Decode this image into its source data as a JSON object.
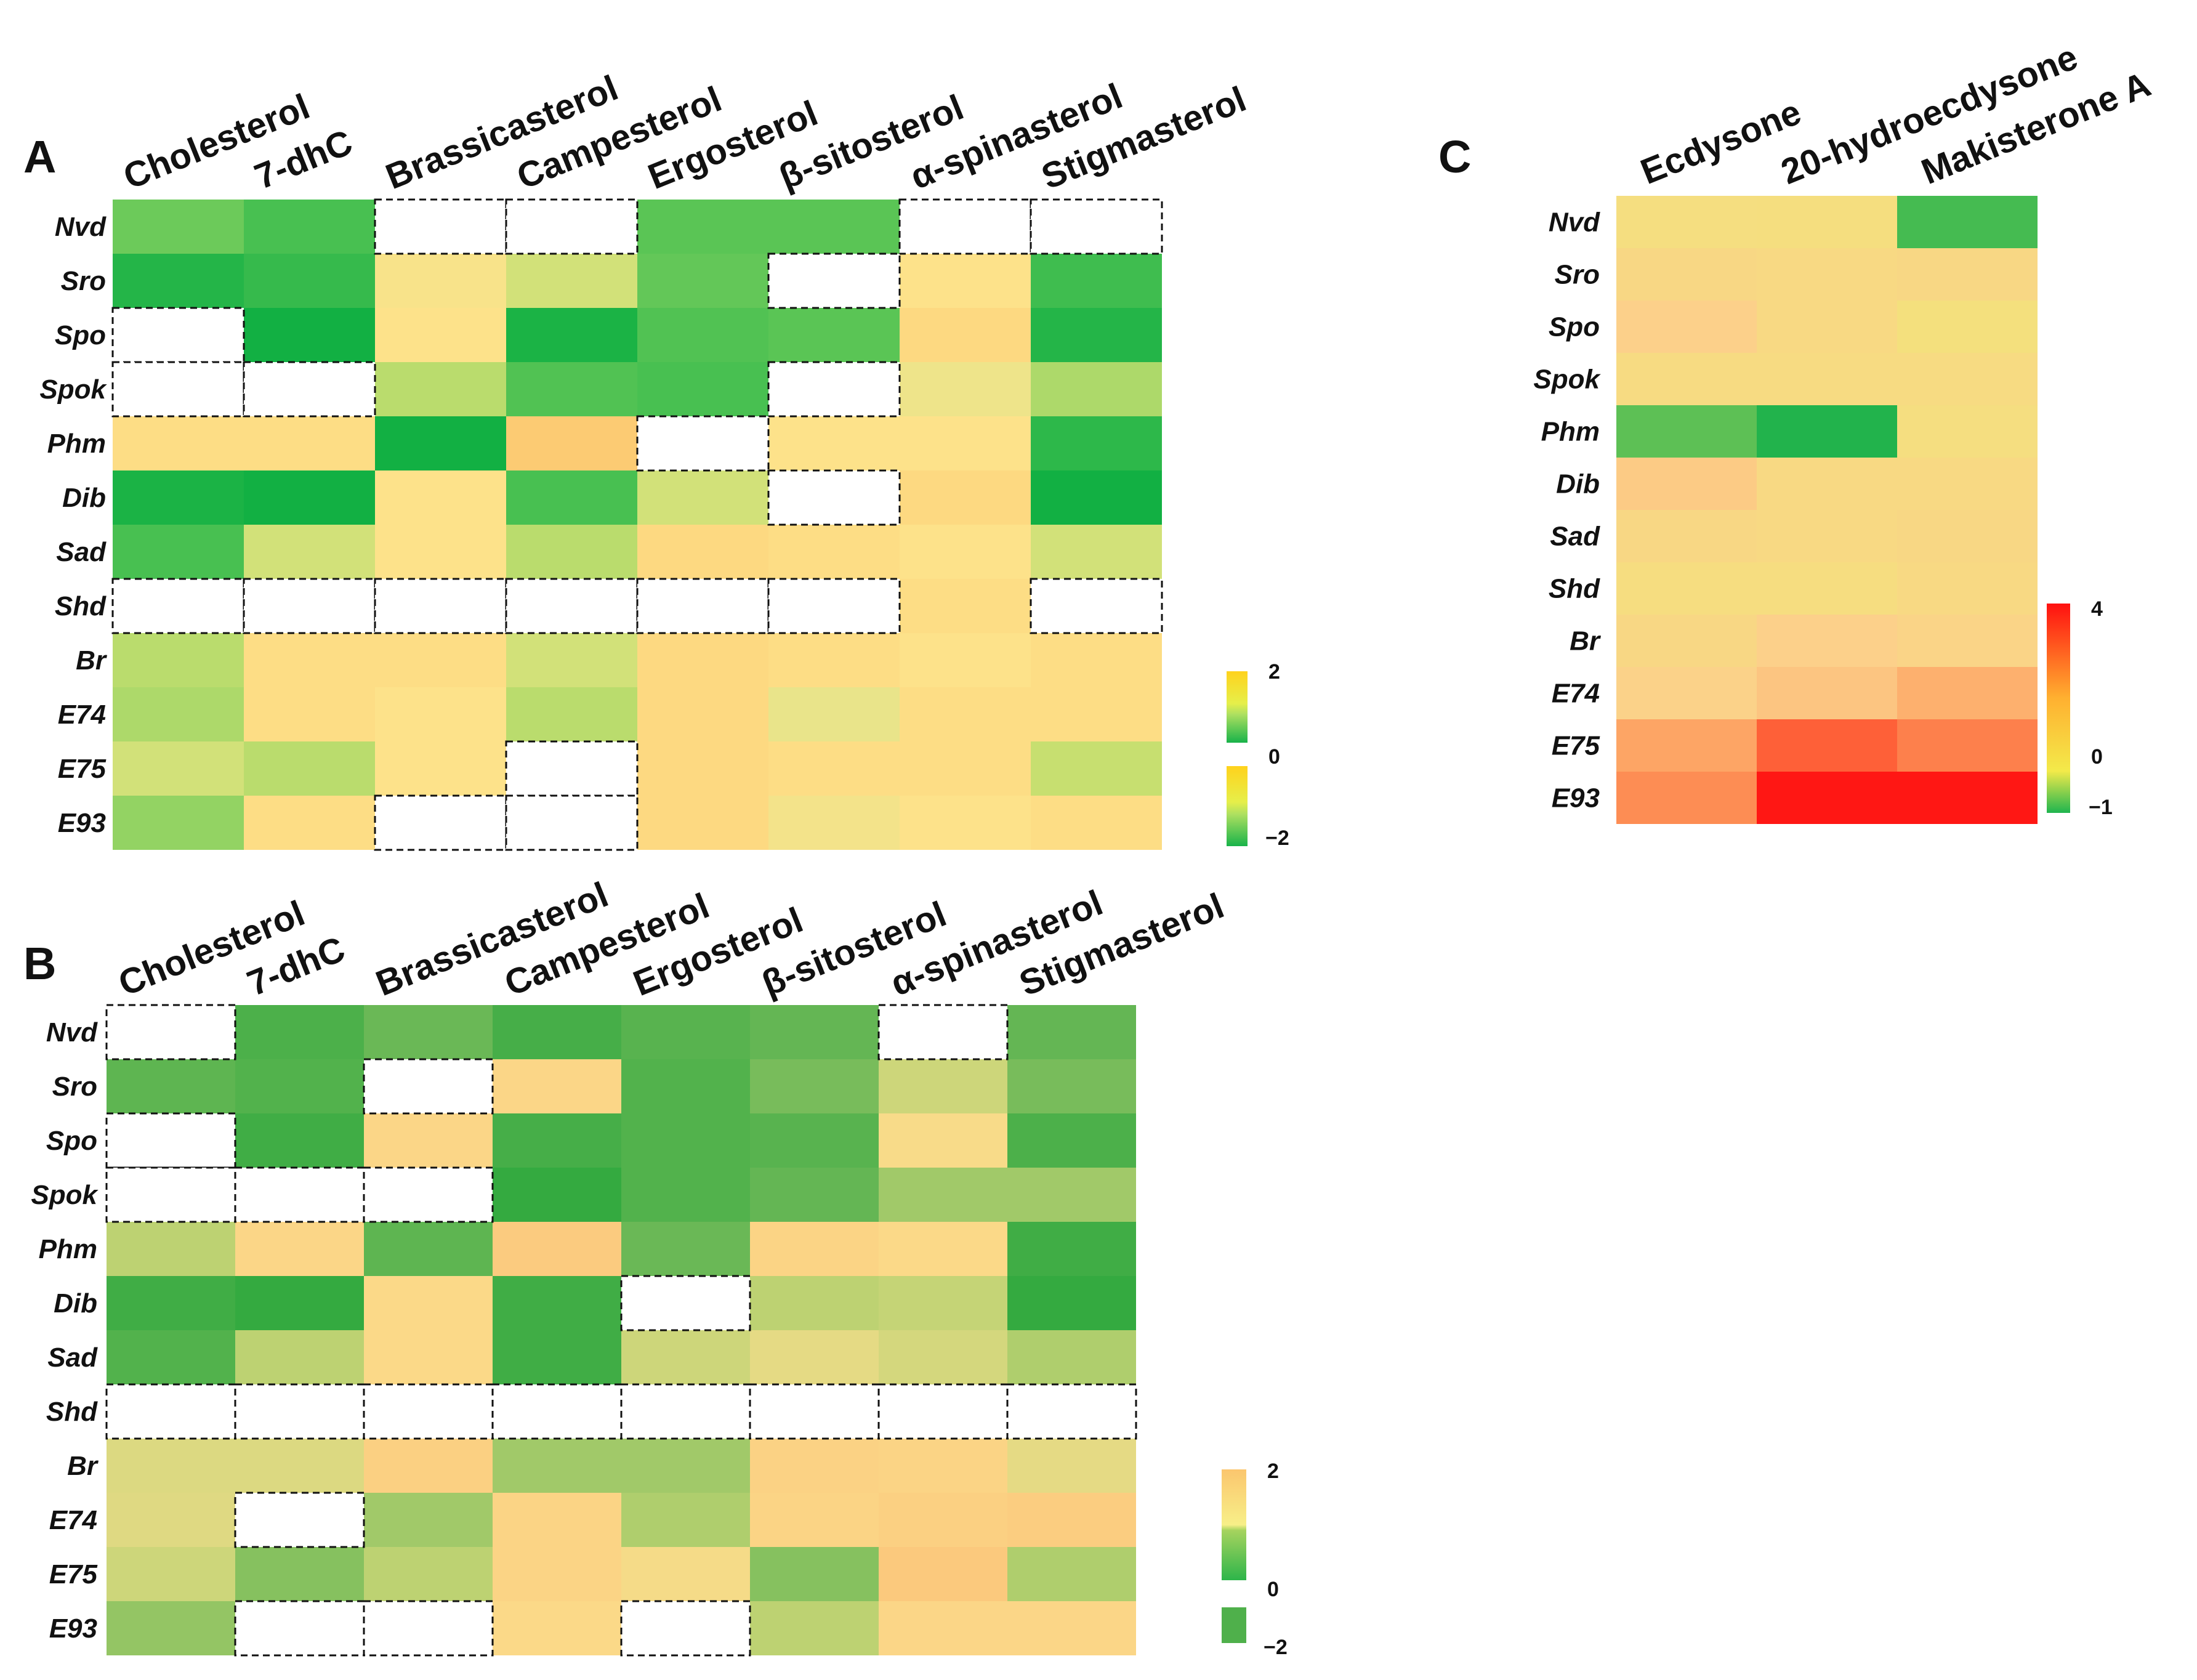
{
  "chart_data": [
    {
      "panel": "A",
      "type": "heatmap",
      "columns": [
        "Cholesterol",
        "7-dhC",
        "Brassicasterol",
        "Campesterol",
        "Ergosterol",
        "β-sitosterol",
        "α-spinasterol",
        "Stigmasterol"
      ],
      "rows": [
        "Nvd",
        "Sro",
        "Spo",
        "Spok",
        "Phm",
        "Dib",
        "Sad",
        "Shd",
        "Br",
        "E74",
        "E75",
        "E93"
      ],
      "values": [
        [
          -1.0,
          -1.4,
          null,
          null,
          -1.2,
          -1.2,
          null,
          null
        ],
        [
          -1.8,
          -1.6,
          0.3,
          -0.2,
          -1.1,
          null,
          0.4,
          -1.5
        ],
        [
          null,
          -2.0,
          0.4,
          -1.9,
          -1.3,
          -1.2,
          0.6,
          -1.8
        ],
        [
          null,
          null,
          -0.4,
          -1.3,
          -1.4,
          null,
          0.1,
          -0.5
        ],
        [
          0.5,
          0.5,
          -2.0,
          0.9,
          null,
          0.4,
          0.4,
          -1.7
        ],
        [
          -1.9,
          -2.0,
          0.4,
          -1.4,
          -0.2,
          null,
          0.6,
          -2.0
        ],
        [
          -1.4,
          -0.2,
          0.4,
          -0.4,
          0.6,
          0.5,
          0.4,
          -0.2
        ],
        [
          null,
          null,
          null,
          null,
          null,
          null,
          0.5,
          null
        ],
        [
          -0.4,
          0.5,
          0.5,
          -0.2,
          0.6,
          0.5,
          0.4,
          0.5
        ],
        [
          -0.5,
          0.5,
          0.4,
          -0.4,
          0.6,
          0.0,
          0.5,
          0.5
        ],
        [
          -0.2,
          -0.4,
          0.4,
          null,
          0.6,
          0.5,
          0.5,
          -0.3
        ],
        [
          -0.7,
          0.5,
          null,
          null,
          0.6,
          0.2,
          0.4,
          0.5
        ]
      ],
      "colorbar": {
        "ticks": [
          "2",
          "0",
          "−2"
        ],
        "min": -2,
        "max": 2
      }
    },
    {
      "panel": "B",
      "type": "heatmap",
      "columns": [
        "Cholesterol",
        "7-dhC",
        "Brassicasterol",
        "Campesterol",
        "Ergosterol",
        "β-sitosterol",
        "α-spinasterol",
        "Stigmasterol"
      ],
      "rows": [
        "Nvd",
        "Sro",
        "Spo",
        "Spok",
        "Phm",
        "Dib",
        "Sad",
        "Shd",
        "Br",
        "E74",
        "E75",
        "E93"
      ],
      "values": [
        [
          null,
          -1.5,
          -1.0,
          -1.6,
          -1.3,
          -1.1,
          null,
          -1.1
        ],
        [
          -1.2,
          -1.4,
          null,
          1.2,
          -1.4,
          -0.9,
          -0.2,
          -0.9
        ],
        [
          null,
          -1.7,
          1.2,
          -1.6,
          -1.4,
          -1.3,
          0.9,
          -1.5
        ],
        [
          null,
          null,
          null,
          -1.9,
          -1.4,
          -1.1,
          -0.6,
          -0.6
        ],
        [
          -0.4,
          1.2,
          -1.2,
          1.7,
          -1.0,
          1.3,
          1.1,
          -1.7
        ],
        [
          -1.7,
          -1.9,
          1.1,
          -1.7,
          null,
          -0.4,
          -0.3,
          -1.9
        ],
        [
          -1.4,
          -0.4,
          1.1,
          -1.7,
          -0.2,
          0.3,
          -0.1,
          -0.5
        ],
        [
          null,
          null,
          null,
          null,
          null,
          null,
          null,
          null
        ],
        [
          0.0,
          0.0,
          1.5,
          -0.6,
          -0.6,
          1.4,
          1.3,
          0.3
        ],
        [
          0.1,
          null,
          -0.6,
          1.3,
          -0.5,
          1.3,
          1.5,
          1.6
        ],
        [
          -0.2,
          -0.8,
          -0.4,
          1.3,
          0.8,
          -0.8,
          1.8,
          -0.5
        ],
        [
          -0.7,
          null,
          null,
          1.1,
          null,
          -0.4,
          1.2,
          1.2
        ]
      ],
      "colorbar": {
        "ticks": [
          "2",
          "0",
          "−2"
        ],
        "min": -2,
        "max": 2
      }
    },
    {
      "panel": "C",
      "type": "heatmap",
      "columns": [
        "Ecdysone",
        "20-hydroecdysone",
        "Makisterone A"
      ],
      "rows": [
        "Nvd",
        "Sro",
        "Spo",
        "Spok",
        "Phm",
        "Dib",
        "Sad",
        "Shd",
        "Br",
        "E74",
        "E75",
        "E93"
      ],
      "values": [
        [
          0.25,
          0.2,
          -0.8
        ],
        [
          0.6,
          0.5,
          0.6
        ],
        [
          1.0,
          0.5,
          0.1
        ],
        [
          0.4,
          0.4,
          0.4
        ],
        [
          -0.7,
          -0.95,
          0.25
        ],
        [
          1.1,
          0.5,
          0.5
        ],
        [
          0.6,
          0.5,
          0.6
        ],
        [
          0.3,
          0.3,
          0.5
        ],
        [
          0.6,
          1.0,
          0.8
        ],
        [
          0.9,
          1.2,
          1.6
        ],
        [
          1.8,
          2.9,
          2.4
        ],
        [
          2.2,
          3.9,
          3.9
        ]
      ],
      "colorbar": {
        "ticks": [
          "4",
          "0",
          "−1"
        ],
        "min": -1,
        "max": 4
      }
    }
  ]
}
